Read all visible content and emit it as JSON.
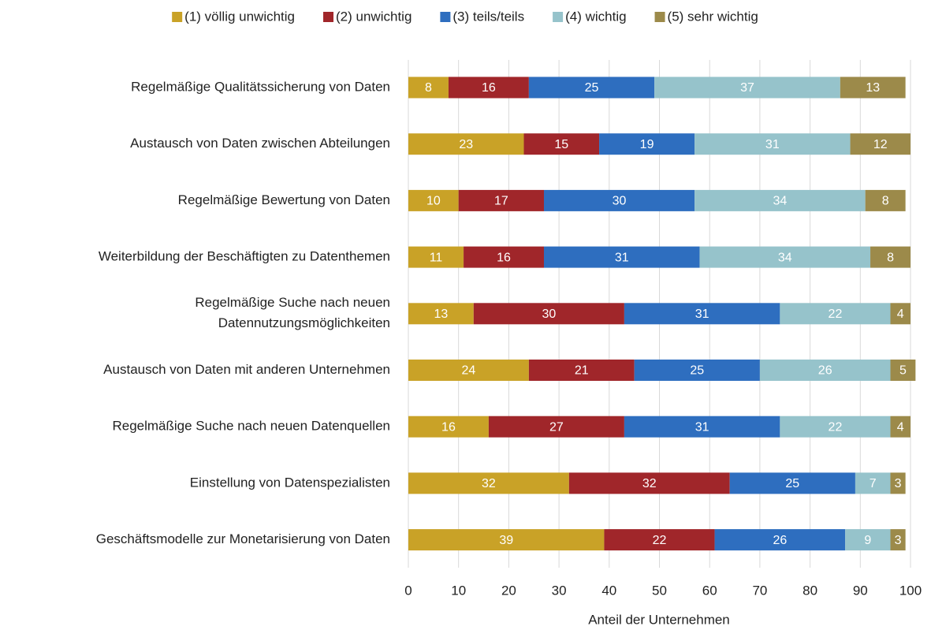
{
  "chart_data": {
    "type": "stacked_barh",
    "x_label": "Anteil der Unternehmen",
    "categories": [
      "Regelmäßige Qualitätssicherung von Daten",
      "Austausch von Daten zwischen Abteilungen",
      "Regelmäßige Bewertung von Daten",
      "Weiterbildung der Beschäftigten zu Datenthemen",
      "Regelmäßige Suche nach neuen\nDatennutzungsmöglichkeiten",
      "Austausch von Daten mit anderen Unternehmen",
      "Regelmäßige Suche nach neuen Datenquellen",
      "Einstellung von Datenspezialisten",
      "Geschäftsmodelle zur Monetarisierung von Daten"
    ],
    "series": [
      {
        "name": "(1) völlig unwichtig",
        "color": "#c9a227",
        "values": [
          8,
          23,
          10,
          11,
          13,
          24,
          16,
          32,
          39
        ]
      },
      {
        "name": "(2) unwichtig",
        "color": "#a0262a",
        "values": [
          16,
          15,
          17,
          16,
          30,
          21,
          27,
          32,
          22
        ]
      },
      {
        "name": "(3) teils/teils",
        "color": "#2e6ebf",
        "values": [
          25,
          19,
          30,
          31,
          31,
          25,
          31,
          25,
          26
        ]
      },
      {
        "name": "(4) wichtig",
        "color": "#96c3cb",
        "values": [
          37,
          31,
          34,
          34,
          22,
          26,
          22,
          7,
          9
        ]
      },
      {
        "name": "(5) sehr wichtig",
        "color": "#9c8a4a",
        "values": [
          13,
          12,
          8,
          8,
          4,
          5,
          4,
          3,
          3
        ]
      }
    ],
    "xlim": [
      0,
      100
    ],
    "xticks": [
      0,
      10,
      20,
      30,
      40,
      50,
      60,
      70,
      80,
      90,
      100
    ],
    "grid": true,
    "legend": "top"
  }
}
